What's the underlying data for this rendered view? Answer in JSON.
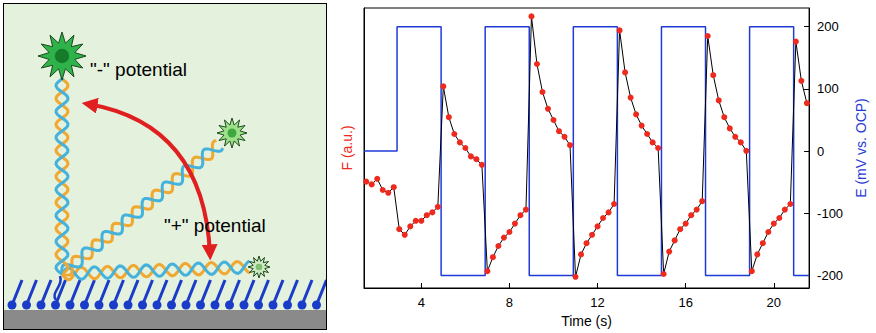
{
  "diagram": {
    "labels": [
      "\"-\" potential",
      "\"+\" potential"
    ]
  },
  "chart_data": {
    "type": "line",
    "xlabel": "Time (s)",
    "ylabel": "F (a.u.)",
    "y2label": "E (mV vs. OCP)",
    "xlim": [
      1.4,
      21.6
    ],
    "xticks": [
      4,
      8,
      12,
      16,
      20
    ],
    "ylim": [
      0,
      100
    ],
    "yticks": [],
    "y2lim": [
      -220,
      230
    ],
    "y2ticks": [
      -200,
      -100,
      0,
      100,
      200
    ],
    "grid": false,
    "series": [
      {
        "color": "#1f3bd6",
        "axis": "y2",
        "marker": "none",
        "x": [
          1.4,
          2.9,
          2.9,
          4.9,
          4.9,
          6.9,
          6.9,
          8.9,
          8.9,
          10.9,
          10.9,
          12.9,
          12.9,
          14.9,
          14.9,
          16.9,
          16.9,
          18.9,
          18.9,
          20.9,
          20.9,
          21.6
        ],
        "values": [
          0,
          0,
          200,
          200,
          -200,
          -200,
          200,
          200,
          -200,
          -200,
          200,
          200,
          -200,
          -200,
          200,
          200,
          -200,
          -200,
          200,
          200,
          -200,
          -200
        ]
      },
      {
        "color": "#ee2a1e",
        "marker": "circle",
        "x": [
          1.5,
          1.75,
          2.0,
          2.25,
          2.5,
          2.75,
          3.0,
          3.25,
          3.5,
          3.75,
          4.0,
          4.25,
          4.5,
          4.75,
          5.0,
          5.25,
          5.5,
          5.75,
          6.0,
          6.25,
          6.5,
          6.75,
          7.0,
          7.25,
          7.5,
          7.75,
          8.0,
          8.25,
          8.5,
          8.75,
          9.0,
          9.25,
          9.5,
          9.75,
          10.0,
          10.25,
          10.5,
          10.75,
          11.0,
          11.25,
          11.5,
          11.75,
          12.0,
          12.25,
          12.5,
          12.75,
          13.0,
          13.25,
          13.5,
          13.75,
          14.0,
          14.25,
          14.5,
          14.75,
          15.0,
          15.25,
          15.5,
          15.75,
          16.0,
          16.25,
          16.5,
          16.75,
          17.0,
          17.25,
          17.5,
          17.75,
          18.0,
          18.25,
          18.5,
          18.75,
          19.0,
          19.25,
          19.5,
          19.75,
          20.0,
          20.25,
          20.5,
          20.75,
          21.0,
          21.25,
          21.5
        ],
        "values": [
          38,
          37,
          39,
          35,
          34,
          36,
          21,
          19,
          22,
          24,
          24,
          26,
          27,
          29,
          72,
          61,
          55,
          52,
          50,
          47,
          46,
          44,
          6,
          11,
          15,
          18,
          20,
          23,
          26,
          28,
          97,
          80,
          70,
          64,
          60,
          56,
          54,
          51,
          4,
          12,
          16,
          19,
          22,
          25,
          27,
          30,
          92,
          77,
          68,
          62,
          58,
          55,
          52,
          50,
          5,
          13,
          17,
          21,
          23,
          26,
          28,
          31,
          90,
          76,
          67,
          61,
          57,
          54,
          52,
          49,
          6,
          12,
          16,
          20,
          23,
          25,
          28,
          30,
          88,
          74,
          66
        ]
      }
    ]
  }
}
